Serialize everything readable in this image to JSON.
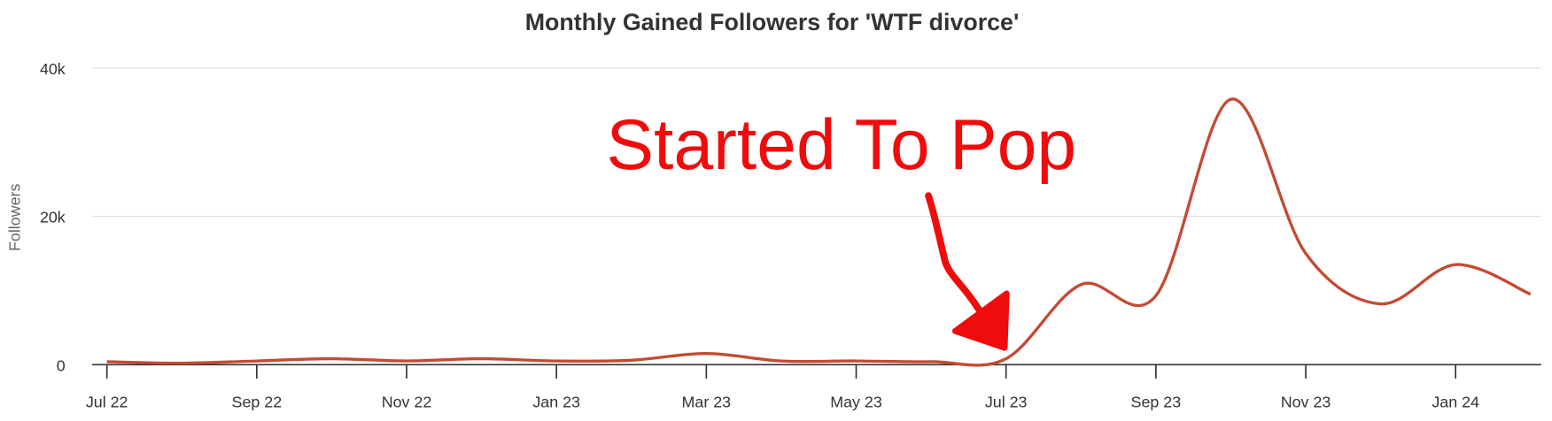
{
  "chart_data": {
    "type": "line",
    "title": "Monthly Gained Followers for 'WTF divorce'",
    "y_label": "Followers",
    "annotation": "Started To Pop",
    "categories": [
      "Jul 22",
      null,
      "Sep 22",
      null,
      "Nov 22",
      null,
      "Jan 23",
      null,
      "Mar 23",
      null,
      "May 23",
      null,
      "Jul 23",
      null,
      "Sep 23",
      null,
      "Nov 23",
      null,
      "Jan 24",
      null
    ],
    "series": [
      {
        "name": "Followers",
        "color": "#c44a33",
        "values": [
          400,
          200,
          500,
          800,
          500,
          800,
          500,
          600,
          1500,
          500,
          500,
          400,
          800,
          10800,
          9300,
          35800,
          15000,
          8200,
          13500,
          9500
        ]
      }
    ],
    "ylim": [
      0,
      40000
    ],
    "yticks": [
      0,
      {
        "value": 20000,
        "label": "20k"
      },
      {
        "value": 40000,
        "label": "40k"
      }
    ],
    "grid": true
  }
}
